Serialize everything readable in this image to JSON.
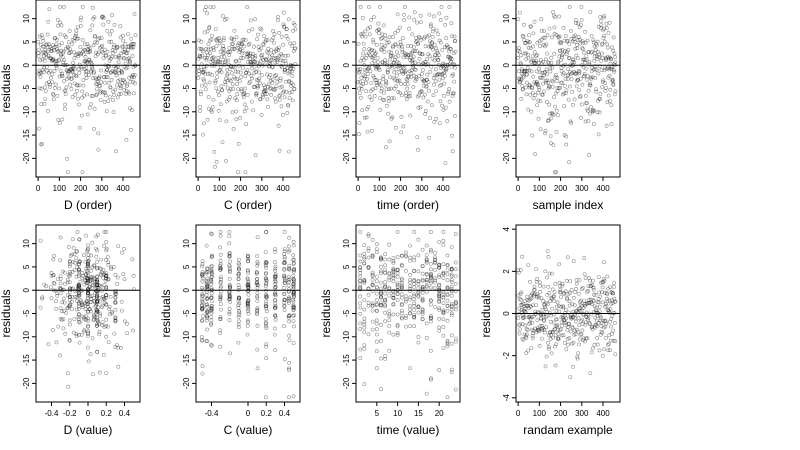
{
  "chart_data": [
    {
      "type": "scatter",
      "xlabel": "D (order)",
      "ylabel": "residuals",
      "xlim": [
        -10,
        480
      ],
      "ylim": [
        -24,
        14
      ],
      "xticks": [
        0,
        100,
        200,
        300,
        400
      ],
      "yticks": [
        10,
        5,
        0,
        -5,
        -10,
        -15,
        -20
      ],
      "hline": 0,
      "gen": "order"
    },
    {
      "type": "scatter",
      "xlabel": "C (order)",
      "ylabel": "residuals",
      "xlim": [
        -10,
        480
      ],
      "ylim": [
        -24,
        14
      ],
      "xticks": [
        0,
        100,
        200,
        300,
        400
      ],
      "yticks": [
        10,
        5,
        0,
        -5,
        -10,
        -15,
        -20
      ],
      "hline": 0,
      "gen": "order"
    },
    {
      "type": "scatter",
      "xlabel": "time (order)",
      "ylabel": "residuals",
      "xlim": [
        -10,
        480
      ],
      "ylim": [
        -24,
        14
      ],
      "xticks": [
        0,
        100,
        200,
        300,
        400
      ],
      "yticks": [
        10,
        5,
        0,
        -5,
        -10,
        -15,
        -20
      ],
      "hline": 0,
      "gen": "order"
    },
    {
      "type": "scatter",
      "xlabel": "sample index",
      "ylabel": "residuals",
      "xlim": [
        -10,
        480
      ],
      "ylim": [
        -24,
        14
      ],
      "xticks": [
        0,
        100,
        200,
        300,
        400
      ],
      "yticks": [
        10,
        5,
        0,
        -5,
        -10,
        -15,
        -20
      ],
      "hline": 0,
      "gen": "order"
    },
    {
      "type": "scatter",
      "xlabel": "D (value)",
      "ylabel": "residuals",
      "xlim": [
        -0.57,
        0.57
      ],
      "ylim": [
        -24,
        14
      ],
      "xticks": [
        -0.4,
        -0.2,
        0.0,
        0.2,
        0.4
      ],
      "yticks": [
        10,
        5,
        0,
        -5,
        -10,
        -15,
        -20
      ],
      "hline": 0,
      "gen": "valueD"
    },
    {
      "type": "scatter",
      "xlabel": "C (value)",
      "ylabel": "residuals",
      "xlim": [
        -0.57,
        0.57
      ],
      "ylim": [
        -24,
        14
      ],
      "xticks": [
        -0.4,
        0.0,
        0.2,
        0.4
      ],
      "yticks": [
        10,
        5,
        0,
        -5,
        -10,
        -15,
        -20
      ],
      "hline": 0,
      "gen": "valueC"
    },
    {
      "type": "scatter",
      "xlabel": "time (value)",
      "ylabel": "residuals",
      "xlim": [
        0,
        25
      ],
      "ylim": [
        -24,
        14
      ],
      "xticks": [
        5,
        10,
        15,
        20
      ],
      "yticks": [
        10,
        5,
        0,
        -5,
        -10,
        -15,
        -20
      ],
      "hline": 0,
      "gen": "time"
    },
    {
      "type": "scatter",
      "xlabel": "randam example",
      "ylabel": "residuals",
      "xlim": [
        -10,
        480
      ],
      "ylim": [
        -4.2,
        4.2
      ],
      "xticks": [
        0,
        100,
        200,
        300,
        400
      ],
      "yticks": [
        4,
        2,
        0,
        -2,
        -4
      ],
      "hline": 0,
      "gen": "random"
    }
  ]
}
